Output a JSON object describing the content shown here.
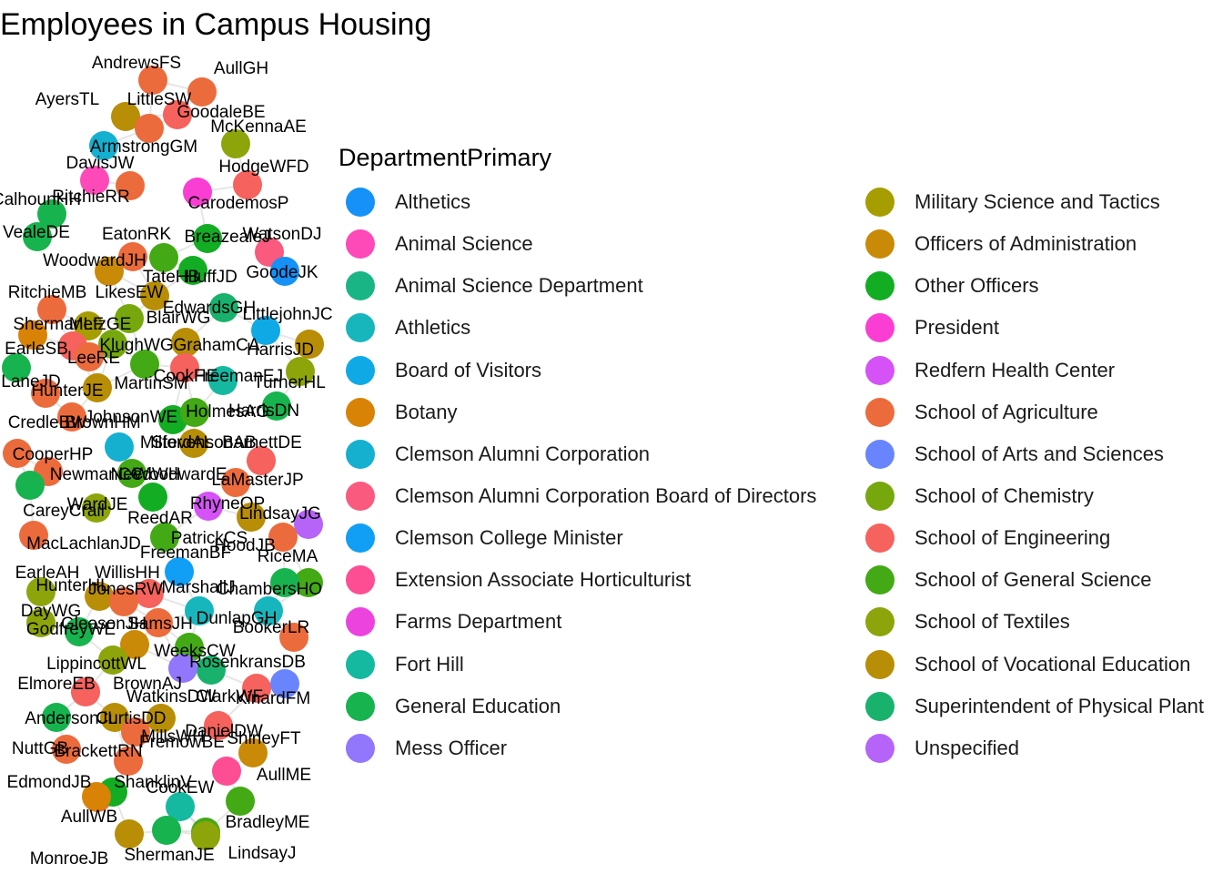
{
  "chart_data": {
    "type": "network",
    "title": "Employees in Campus Housing",
    "legend_title": "DepartmentPrimary",
    "legend_placement": "right",
    "grid": false,
    "categories": [
      {
        "name": "Althetics",
        "color": "#1591f8"
      },
      {
        "name": "Animal Science",
        "color": "#fd4ab8"
      },
      {
        "name": "Animal Science Department",
        "color": "#1ab585"
      },
      {
        "name": "Athletics",
        "color": "#17b6bd"
      },
      {
        "name": "Board of Visitors",
        "color": "#0faae6"
      },
      {
        "name": "Botany",
        "color": "#d88306"
      },
      {
        "name": "Clemson Alumni Corporation",
        "color": "#15b0d0"
      },
      {
        "name": "Clemson Alumni Corporation Board of Directors",
        "color": "#fa5a7e"
      },
      {
        "name": "Clemson College Minister",
        "color": "#109ff5"
      },
      {
        "name": "Extension Associate Horticulturist",
        "color": "#fe4e93"
      },
      {
        "name": "Farms Department",
        "color": "#ec43df"
      },
      {
        "name": "Fort Hill",
        "color": "#15b9a0"
      },
      {
        "name": "General Education",
        "color": "#17b34e"
      },
      {
        "name": "Mess Officer",
        "color": "#9276fb"
      },
      {
        "name": "Military Science and Tactics",
        "color": "#a69d00"
      },
      {
        "name": "Officers of Administration",
        "color": "#c98a07"
      },
      {
        "name": "Other Officers",
        "color": "#13ad24"
      },
      {
        "name": "President",
        "color": "#fb3ed3"
      },
      {
        "name": "Redfern Health Center",
        "color": "#d552f6"
      },
      {
        "name": "School of Agriculture",
        "color": "#ec6b3c"
      },
      {
        "name": "School of Arts and Sciences",
        "color": "#6985fd"
      },
      {
        "name": "School of Chemistry",
        "color": "#76a80d"
      },
      {
        "name": "School of Engineering",
        "color": "#f6625d"
      },
      {
        "name": "School of General Science",
        "color": "#43a914"
      },
      {
        "name": "School of Textiles",
        "color": "#8ea40b"
      },
      {
        "name": "School of Vocational Education",
        "color": "#b88e06"
      },
      {
        "name": "Superintendent of Physical Plant",
        "color": "#18b26c"
      },
      {
        "name": "Unspecified",
        "color": "#b663f8"
      }
    ],
    "nodes": [
      {
        "label": "AndrewsFS",
        "dept": "School of Agriculture"
      },
      {
        "label": "AullGH",
        "dept": "School of Agriculture"
      },
      {
        "label": "AyersTL",
        "dept": "School of Vocational Education"
      },
      {
        "label": "LittleSW",
        "dept": "School of Agriculture"
      },
      {
        "label": "GoodaleBE",
        "dept": "School of Engineering"
      },
      {
        "label": "McKennaAE",
        "dept": "School of Textiles"
      },
      {
        "label": "ArmstrongGM",
        "dept": "Clemson Alumni Corporation"
      },
      {
        "label": "DavisJW",
        "dept": "Animal Science"
      },
      {
        "label": "HodgeWFD",
        "dept": "School of Engineering"
      },
      {
        "label": "CalhounHH",
        "dept": "General Education"
      },
      {
        "label": "RitchieRR",
        "dept": "School of Agriculture"
      },
      {
        "label": "CarodemosP",
        "dept": "President"
      },
      {
        "label": "VealeDE",
        "dept": "General Education"
      },
      {
        "label": "EatonRK",
        "dept": "School of Agriculture"
      },
      {
        "label": "BreazealeJ",
        "dept": "Other Officers"
      },
      {
        "label": "WatsonDJ",
        "dept": "Clemson Alumni Corporation Board of Directors"
      },
      {
        "label": "WoodwardJH",
        "dept": "Officers of Administration"
      },
      {
        "label": "TateHB",
        "dept": "School of General Science"
      },
      {
        "label": "HuffJD",
        "dept": "Other Officers"
      },
      {
        "label": "GoodeJK",
        "dept": "Althetics"
      },
      {
        "label": "RitchieMB",
        "dept": "School of Agriculture"
      },
      {
        "label": "LikesEW",
        "dept": "School of Vocational Education"
      },
      {
        "label": "EdwardsGH",
        "dept": "Superintendent of Physical Plant"
      },
      {
        "label": "LittlejohnJC",
        "dept": "Board of Visitors"
      },
      {
        "label": "ShermanLF",
        "dept": "Botany"
      },
      {
        "label": "MetzGE",
        "dept": "Military Science and Tactics"
      },
      {
        "label": "BlairWG",
        "dept": "School of Chemistry"
      },
      {
        "label": "GrahamCA",
        "dept": "School of Vocational Education"
      },
      {
        "label": "HarrisJD",
        "dept": "School of Vocational Education"
      },
      {
        "label": "EarleSB",
        "dept": "School of Engineering"
      },
      {
        "label": "KlughWG",
        "dept": "School of Chemistry"
      },
      {
        "label": "LeeRE",
        "dept": "School of Agriculture"
      },
      {
        "label": "LaneJD",
        "dept": "General Education"
      },
      {
        "label": "CookHE",
        "dept": "Fort Hill"
      },
      {
        "label": "FreemanEJ",
        "dept": "School of Engineering"
      },
      {
        "label": "TurnerHL",
        "dept": "School of Textiles"
      },
      {
        "label": "HunterJE",
        "dept": "School of Vocational Education"
      },
      {
        "label": "MartinSM",
        "dept": "School of General Science"
      },
      {
        "label": "CredleBW",
        "dept": "School of Agriculture"
      },
      {
        "label": "BrownHM",
        "dept": "School of Agriculture"
      },
      {
        "label": "JohnsonWE",
        "dept": "Other Officers"
      },
      {
        "label": "HolmesAG",
        "dept": "School of General Science"
      },
      {
        "label": "HarrisDN",
        "dept": "General Education"
      },
      {
        "label": "CooperHP",
        "dept": "School of Agriculture"
      },
      {
        "label": "MilfordAL",
        "dept": "Clemson Alumni Corporation"
      },
      {
        "label": "StevensonAB",
        "dept": "School of Vocational Education"
      },
      {
        "label": "BarnettDE",
        "dept": "School of Engineering"
      },
      {
        "label": "NewmanCC",
        "dept": "School of Agriculture"
      },
      {
        "label": "NeedWH",
        "dept": "School of General Science"
      },
      {
        "label": "WoodwardE",
        "dept": "Other Officers"
      },
      {
        "label": "LaMasterJP",
        "dept": "School of Agriculture"
      },
      {
        "label": "CareyCrail",
        "dept": "General Education"
      },
      {
        "label": "WardJE",
        "dept": "School of Textiles"
      },
      {
        "label": "ReedAR",
        "dept": "School of General Science"
      },
      {
        "label": "RhyneOP",
        "dept": "Redfern Health Center"
      },
      {
        "label": "LindsayJG",
        "dept": "Unspecified"
      },
      {
        "label": "MacLachlanJD",
        "dept": "School of Agriculture"
      },
      {
        "label": "PatrickCS",
        "dept": "School of Vocational Education"
      },
      {
        "label": "FreemanBF",
        "dept": "Clemson College Minister"
      },
      {
        "label": "HoodJB",
        "dept": "School of Agriculture"
      },
      {
        "label": "RiceMA",
        "dept": "School of General Science"
      },
      {
        "label": "EarleAH",
        "dept": "School of Textiles"
      },
      {
        "label": "WillisHH",
        "dept": "School of Engineering"
      },
      {
        "label": "HunterHL",
        "dept": "School of Vocational Education"
      },
      {
        "label": "JonesRW",
        "dept": "School of Agriculture"
      },
      {
        "label": "MarshallJ",
        "dept": "Athletics"
      },
      {
        "label": "ChambersHO",
        "dept": "General Education"
      },
      {
        "label": "DayWG",
        "dept": "School of Textiles"
      },
      {
        "label": "GodfreyWE",
        "dept": "General Education"
      },
      {
        "label": "GleasonJH",
        "dept": "School of Agriculture"
      },
      {
        "label": "SamsJH",
        "dept": "Officers of Administration"
      },
      {
        "label": "DunlapGH",
        "dept": "Athletics"
      },
      {
        "label": "BookerLR",
        "dept": "School of Agriculture"
      },
      {
        "label": "WeeksCW",
        "dept": "School of General Science"
      },
      {
        "label": "LippincottWL",
        "dept": "School of Textiles"
      },
      {
        "label": "RosenkransDB",
        "dept": "Superintendent of Physical Plant"
      },
      {
        "label": "ElmoreEB",
        "dept": "School of Engineering"
      },
      {
        "label": "BrownAJ",
        "dept": "Mess Officer"
      },
      {
        "label": "WatkinsDW",
        "dept": "School of Vocational Education"
      },
      {
        "label": "ClarkWF",
        "dept": "School of Engineering"
      },
      {
        "label": "KinardFM",
        "dept": "School of Arts and Sciences"
      },
      {
        "label": "AndersonJL",
        "dept": "General Education"
      },
      {
        "label": "CurtisDD",
        "dept": "School of Vocational Education"
      },
      {
        "label": "MillsWH",
        "dept": "School of Agriculture"
      },
      {
        "label": "DanielDW",
        "dept": "School of Engineering"
      },
      {
        "label": "ShirleyFT",
        "dept": "Officers of Administration"
      },
      {
        "label": "NuttGB",
        "dept": "School of Agriculture"
      },
      {
        "label": "BrackettRN",
        "dept": "School of Agriculture"
      },
      {
        "label": "FremowBE",
        "dept": "Extension Associate Horticulturist"
      },
      {
        "label": "EdmondJB",
        "dept": "School of Agriculture"
      },
      {
        "label": "ShanklinV",
        "dept": "Other Officers"
      },
      {
        "label": "AullME",
        "dept": "School of General Science"
      },
      {
        "label": "CookEW",
        "dept": "Fort Hill"
      },
      {
        "label": "AullWB",
        "dept": "Botany"
      },
      {
        "label": "BradleyME",
        "dept": "School of General Science"
      },
      {
        "label": "MonroeJB",
        "dept": "School of Vocational Education"
      },
      {
        "label": "ShermanJE",
        "dept": "General Education"
      },
      {
        "label": "LindsayJ",
        "dept": "School of Textiles"
      }
    ]
  }
}
